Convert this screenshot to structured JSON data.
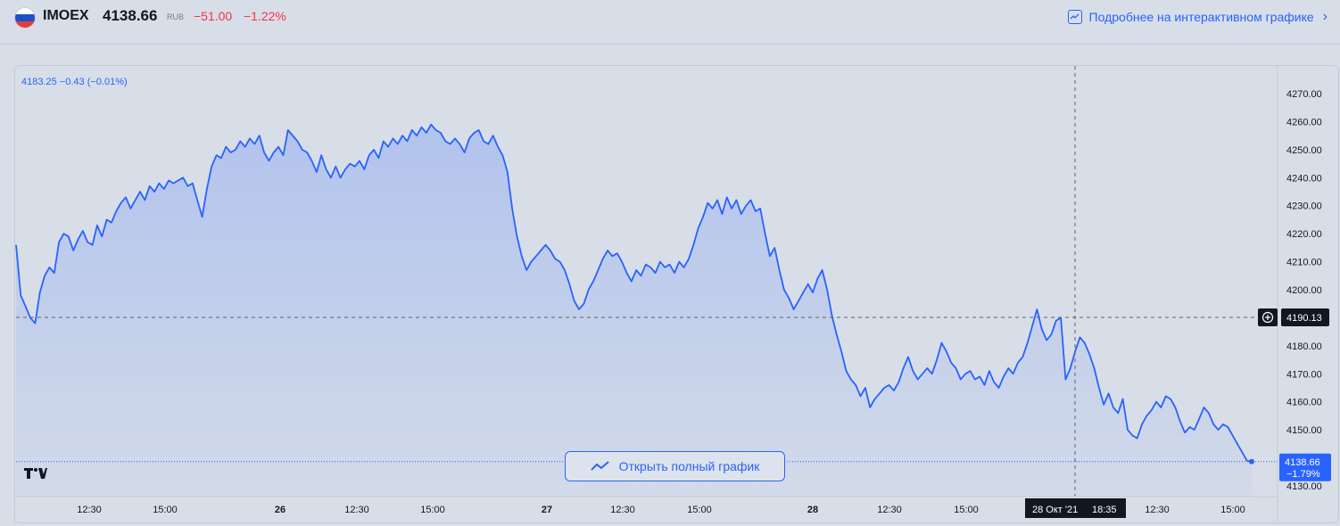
{
  "header": {
    "symbol": "IMOEX",
    "price": "4138.66",
    "currency": "RUB",
    "change": "−51.00",
    "change_pct": "−1.22%",
    "more_link": "Подробнее на интерактивном графике"
  },
  "legend": {
    "ohlc_text": "4183.25  −0.43 (−0.01%)"
  },
  "open_button": {
    "label": "Открыть полный график"
  },
  "colors": {
    "line": "#2962ff",
    "negative": "#f23645",
    "background": "#d8dee8",
    "label_bg": "#131722"
  },
  "chart_data": {
    "type": "area",
    "title": "",
    "xlabel": "",
    "ylabel": "",
    "ylim": [
      4126,
      4276
    ],
    "x_ticks": [
      "12:30",
      "15:00",
      "26",
      "12:30",
      "15:00",
      "27",
      "12:30",
      "15:00",
      "28",
      "12:30",
      "15:00",
      "28 Окт '21",
      "18:35",
      "12:30",
      "15:00"
    ],
    "y_ticks": [
      "4270.00",
      "4260.00",
      "4250.00",
      "4240.00",
      "4230.00",
      "4220.00",
      "4210.00",
      "4200.00",
      "4190.00",
      "4180.00",
      "4170.00",
      "4160.00",
      "4150.00",
      "4140.00",
      "4130.00"
    ],
    "crosshair": {
      "x_label": "28 Окт '21",
      "time_label": "18:35",
      "y_label": "4190.13"
    },
    "last_price": {
      "value": "4138.66",
      "change_pct": "−1.79%"
    },
    "grid": false,
    "series": [
      {
        "values": [
          4216,
          4198,
          4194,
          4190,
          4188,
          4199,
          4205,
          4208,
          4206,
          4217,
          4220,
          4219,
          4214,
          4218,
          4221,
          4217,
          4216,
          4223,
          4219,
          4225,
          4224,
          4228,
          4231,
          4233,
          4229,
          4232,
          4235,
          4232,
          4237,
          4235,
          4238,
          4236,
          4239,
          4238,
          4239,
          4240,
          4237,
          4238,
          4232,
          4226,
          4236,
          4244,
          4248,
          4247,
          4251,
          4249,
          4250,
          4253,
          4251,
          4254,
          4252,
          4255,
          4249,
          4246,
          4249,
          4251,
          4248,
          4257,
          4255,
          4253,
          4250,
          4249,
          4246,
          4242,
          4248,
          4243,
          4240,
          4244,
          4240,
          4243,
          4245,
          4244,
          4246,
          4243,
          4248,
          4250,
          4247,
          4253,
          4251,
          4254,
          4252,
          4255,
          4253,
          4257,
          4255,
          4258,
          4256,
          4259,
          4257,
          4256,
          4253,
          4252,
          4254,
          4252,
          4249,
          4254,
          4256,
          4257,
          4253,
          4252,
          4255,
          4251,
          4248,
          4242,
          4229,
          4219,
          4212,
          4207,
          4210,
          4212,
          4214,
          4216,
          4214,
          4211,
          4210,
          4207,
          4202,
          4196,
          4193,
          4195,
          4200,
          4203,
          4207,
          4211,
          4214,
          4212,
          4213,
          4210,
          4206,
          4203,
          4207,
          4205,
          4209,
          4208,
          4206,
          4210,
          4208,
          4209,
          4206,
          4210,
          4208,
          4211,
          4216,
          4222,
          4226,
          4231,
          4229,
          4232,
          4227,
          4233,
          4229,
          4232,
          4227,
          4230,
          4232,
          4228,
          4229,
          4220,
          4212,
          4215,
          4207,
          4200,
          4197,
          4193,
          4196,
          4199,
          4202,
          4199,
          4204,
          4207,
          4200,
          4191,
          4184,
          4178,
          4171,
          4168,
          4166,
          4162,
          4165,
          4158,
          4161,
          4163,
          4165,
          4166,
          4164,
          4167,
          4172,
          4176,
          4171,
          4168,
          4170,
          4172,
          4170,
          4175,
          4181,
          4178,
          4174,
          4172,
          4168,
          4170,
          4171,
          4168,
          4169,
          4166,
          4171,
          4167,
          4165,
          4169,
          4172,
          4170,
          4174,
          4176,
          4181,
          4187,
          4193,
          4186,
          4182,
          4184,
          4189,
          4190,
          4168,
          4172,
          4178,
          4183,
          4181,
          4177,
          4172,
          4165,
          4159,
          4163,
          4158,
          4156,
          4161,
          4150,
          4148,
          4147,
          4152,
          4155,
          4157,
          4160,
          4158,
          4162,
          4161,
          4158,
          4153,
          4149,
          4151,
          4150,
          4154,
          4158,
          4156,
          4152,
          4150,
          4152,
          4151,
          4148,
          4145,
          4142,
          4139,
          4138.66
        ]
      }
    ]
  }
}
